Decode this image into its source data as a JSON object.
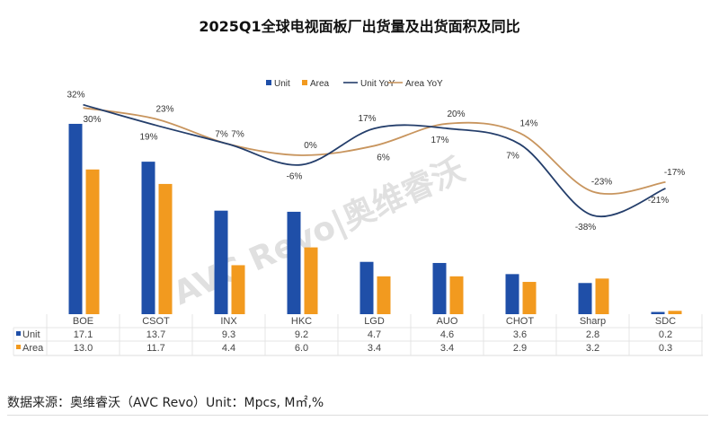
{
  "title": "2025Q1全球电视面板厂出货量及出货面积及同比",
  "footer": "数据来源：奥维睿沃（AVC Revo）Unit：Mpcs, M㎡,%",
  "watermark": "AVC Revo|奥维睿沃",
  "chart_data": {
    "type": "bar+line",
    "title": "2025Q1全球电视面板厂出货量及出货面积及同比",
    "categories": [
      "BOE",
      "CSOT",
      "INX",
      "HKC",
      "LGD",
      "AUO",
      "CHOT",
      "Sharp",
      "SDC"
    ],
    "series": [
      {
        "name": "Unit",
        "type": "bar",
        "color": "#1f4fa8",
        "values": [
          17.1,
          13.7,
          9.3,
          9.2,
          4.7,
          4.6,
          3.6,
          2.8,
          0.2
        ]
      },
      {
        "name": "Area",
        "type": "bar",
        "color": "#f29a1f",
        "values": [
          13.0,
          11.7,
          4.4,
          6.0,
          3.4,
          3.4,
          2.9,
          3.2,
          0.3
        ]
      },
      {
        "name": "Unit YoY",
        "type": "line",
        "color": "#243e6b",
        "values": [
          32,
          19,
          7,
          -6,
          17,
          17,
          7,
          -38,
          -21
        ],
        "labels": [
          "32%",
          "19%",
          "7%",
          "-6%",
          "17%",
          "17%",
          "7%",
          "-38%",
          "-21%"
        ]
      },
      {
        "name": "Area YoY",
        "type": "line",
        "color": "#c8955e",
        "values": [
          30,
          23,
          7,
          0,
          6,
          20,
          14,
          -23,
          -17
        ],
        "labels": [
          "30%",
          "23%",
          "7%",
          "0%",
          "6%",
          "20%",
          "14%",
          "-23%",
          "-17%"
        ]
      }
    ],
    "legend": "top-center",
    "grid": false,
    "data_table": true
  }
}
